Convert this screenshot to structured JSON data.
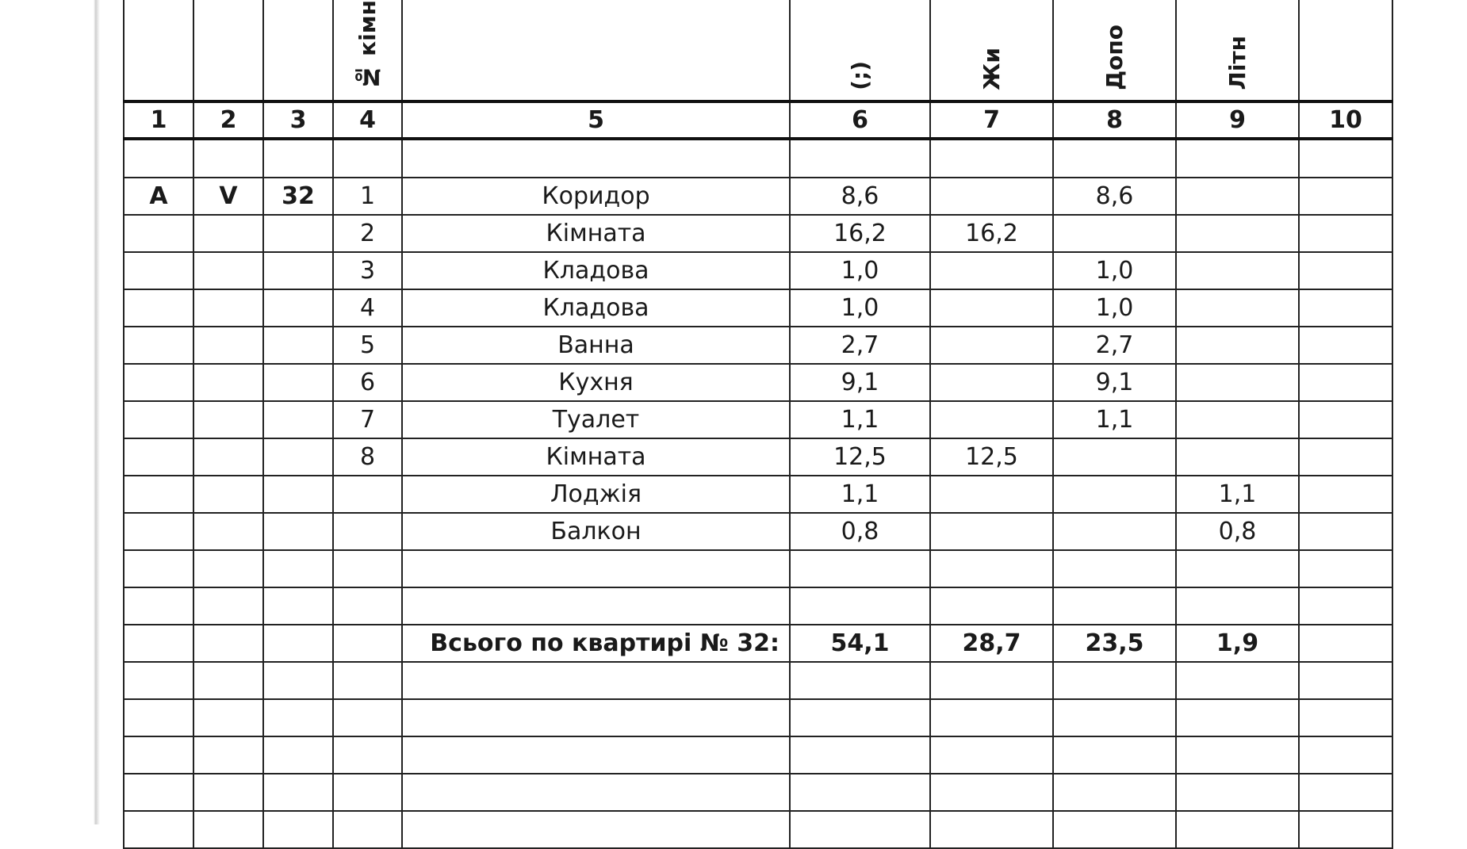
{
  "header_fragments": [
    "",
    "",
    "",
    "№ кімн",
    "",
    "(;)",
    "Жи",
    "Допо",
    "Літн",
    ""
  ],
  "column_numbers": [
    "1",
    "2",
    "3",
    "4",
    "5",
    "6",
    "7",
    "8",
    "9",
    "10"
  ],
  "rows": [
    [
      "",
      "",
      "",
      "",
      "",
      "",
      "",
      "",
      "",
      ""
    ],
    [
      "А",
      "V",
      "32",
      "1",
      "Коридор",
      "8,6",
      "",
      "8,6",
      "",
      ""
    ],
    [
      "",
      "",
      "",
      "2",
      "Кімната",
      "16,2",
      "16,2",
      "",
      "",
      ""
    ],
    [
      "",
      "",
      "",
      "3",
      "Кладова",
      "1,0",
      "",
      "1,0",
      "",
      ""
    ],
    [
      "",
      "",
      "",
      "4",
      "Кладова",
      "1,0",
      "",
      "1,0",
      "",
      ""
    ],
    [
      "",
      "",
      "",
      "5",
      "Ванна",
      "2,7",
      "",
      "2,7",
      "",
      ""
    ],
    [
      "",
      "",
      "",
      "6",
      "Кухня",
      "9,1",
      "",
      "9,1",
      "",
      ""
    ],
    [
      "",
      "",
      "",
      "7",
      "Туалет",
      "1,1",
      "",
      "1,1",
      "",
      ""
    ],
    [
      "",
      "",
      "",
      "8",
      "Кімната",
      "12,5",
      "12,5",
      "",
      "",
      ""
    ],
    [
      "",
      "",
      "",
      "",
      "Лоджія",
      "1,1",
      "",
      "",
      "1,1",
      ""
    ],
    [
      "",
      "",
      "",
      "",
      "Балкон",
      "0,8",
      "",
      "",
      "0,8",
      ""
    ],
    [
      "",
      "",
      "",
      "",
      "",
      "",
      "",
      "",
      "",
      ""
    ],
    [
      "",
      "",
      "",
      "",
      "",
      "",
      "",
      "",
      "",
      ""
    ],
    [
      "",
      "",
      "",
      "",
      "Всього по квартирі № 32:",
      "54,1",
      "28,7",
      "23,5",
      "1,9",
      ""
    ],
    [
      "",
      "",
      "",
      "",
      "",
      "",
      "",
      "",
      "",
      ""
    ],
    [
      "",
      "",
      "",
      "",
      "",
      "",
      "",
      "",
      "",
      ""
    ],
    [
      "",
      "",
      "",
      "",
      "",
      "",
      "",
      "",
      "",
      ""
    ],
    [
      "",
      "",
      "",
      "",
      "",
      "",
      "",
      "",
      "",
      ""
    ],
    [
      "",
      "",
      "",
      "",
      "",
      "",
      "",
      "",
      "",
      ""
    ]
  ],
  "total_row_index": 13
}
